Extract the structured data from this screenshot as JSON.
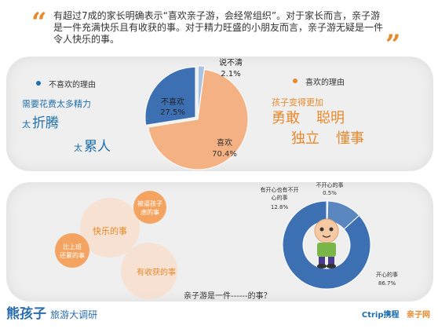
{
  "intro": {
    "text": "有超过7成的家长明确表示“喜欢亲子游，会经常组织”。对于家长而言，亲子游是一件充满快乐且有收获的事。对于精力旺盛的小朋友而言，亲子游无疑是一件令人快乐的事。"
  },
  "colors": {
    "like": "#f4b183",
    "dislike": "#3d70b2",
    "unsure": "#a9c4e2",
    "accent": "#e8892b",
    "blue_text": "#1e6fae"
  },
  "dislike_reasons": {
    "header": "不喜欢的理由",
    "lines": [
      "需要花费太多精力",
      "太",
      "折腾",
      "太",
      "累人"
    ]
  },
  "like_reasons": {
    "header": "喜欢的理由",
    "lines": [
      "孩子变得更加",
      "勇敢",
      "聪明",
      "独立",
      "懂事"
    ]
  },
  "bubbles": [
    "被逼孩子虑的事",
    "快乐的事",
    "比上班还累的事",
    "有收获的事"
  ],
  "question": "亲子游是一件------的事？",
  "brand": {
    "main": "熊孩子",
    "sub": "旅游大调研"
  },
  "logos": {
    "ctrip": "Ctrip携程",
    "partner": "亲子网"
  },
  "chart_data": [
    {
      "type": "pie",
      "categories": [
        "喜欢",
        "不喜欢",
        "说不清"
      ],
      "values": [
        70.4,
        27.5,
        2.1
      ],
      "labels": [
        "70.4%",
        "27.5%",
        "2.1%"
      ]
    },
    {
      "type": "pie",
      "categories": [
        "开心的事",
        "有开心也有不开心的事",
        "不开心的事"
      ],
      "values": [
        86.7,
        12.8,
        0.5
      ],
      "labels": [
        "86.7%",
        "12.8%",
        "0.5%"
      ]
    }
  ]
}
